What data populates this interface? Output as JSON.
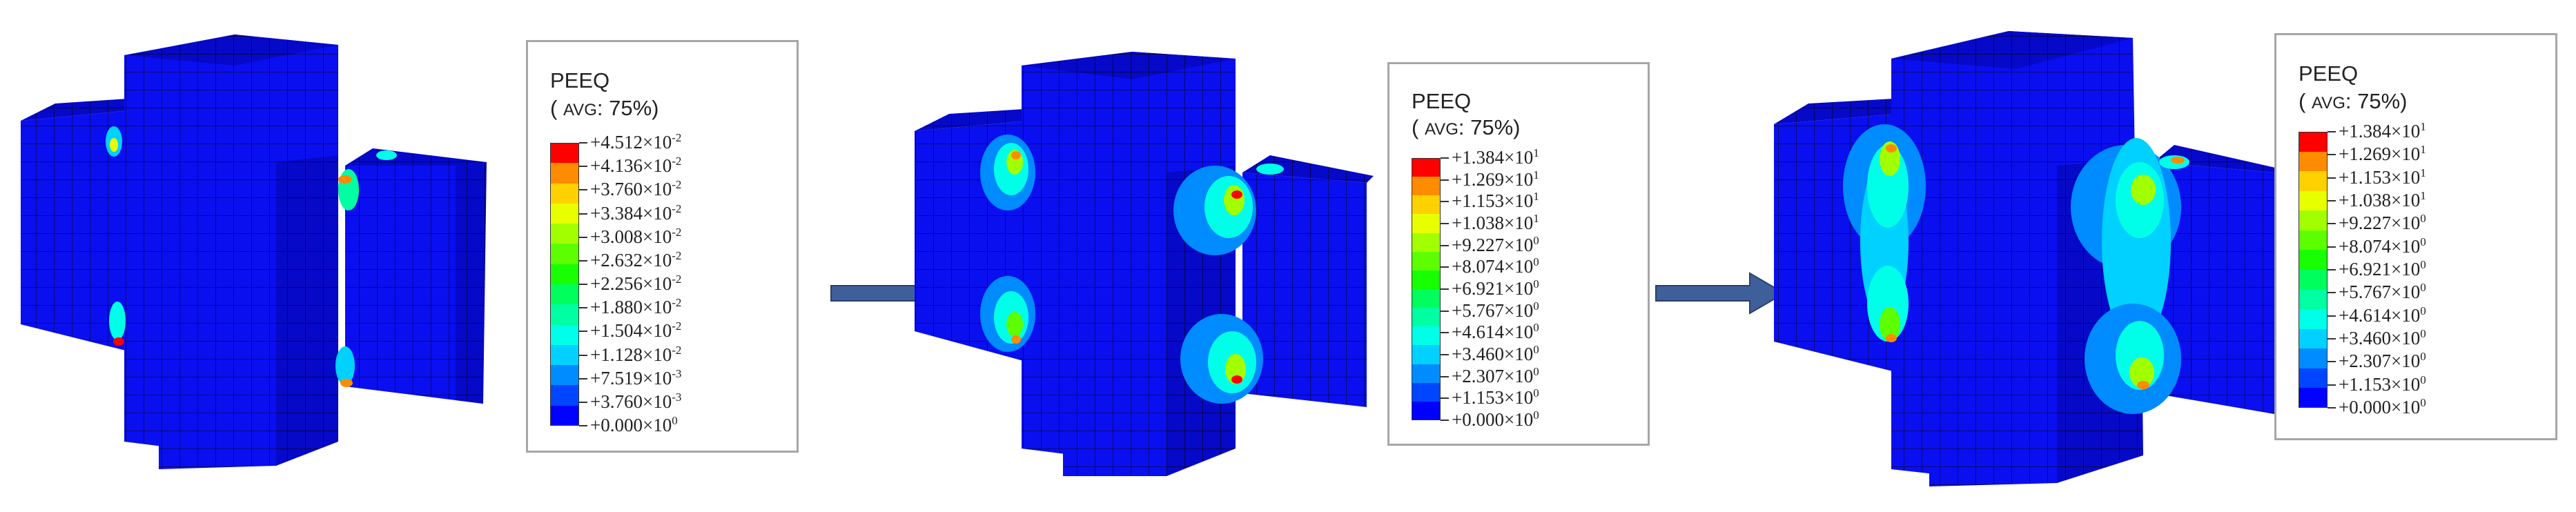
{
  "legend_colors": [
    "#0000ff",
    "#0046ff",
    "#008bff",
    "#00d1ff",
    "#00ffe8",
    "#00ffa2",
    "#00ff5d",
    "#17ff00",
    "#5dff00",
    "#a2ff00",
    "#e8ff00",
    "#ffd100",
    "#ff8b00",
    "#ff0000"
  ],
  "panels": [
    {
      "legend": {
        "title": "PEEQ",
        "avg_open": "(",
        "avg_word": "AVG",
        "avg_rest": ": 75%)",
        "ticks": [
          {
            "m": "+4.512×10",
            "e": "-2"
          },
          {
            "m": "+4.136×10",
            "e": "-2"
          },
          {
            "m": "+3.760×10",
            "e": "-2"
          },
          {
            "m": "+3.384×10",
            "e": "-2"
          },
          {
            "m": "+3.008×10",
            "e": "-2"
          },
          {
            "m": "+2.632×10",
            "e": "-2"
          },
          {
            "m": "+2.256×10",
            "e": "-2"
          },
          {
            "m": "+1.880×10",
            "e": "-2"
          },
          {
            "m": "+1.504×10",
            "e": "-2"
          },
          {
            "m": "+1.128×10",
            "e": "-2"
          },
          {
            "m": "+7.519×10",
            "e": "-3"
          },
          {
            "m": "+3.760×10",
            "e": "-3"
          },
          {
            "m": "+0.000×10",
            "e": "0"
          }
        ]
      },
      "stage": 1
    },
    {
      "legend": {
        "title": "PEEQ",
        "avg_open": "(",
        "avg_word": "AVG",
        "avg_rest": ": 75%)",
        "ticks": [
          {
            "m": "+1.384×10",
            "e": "1"
          },
          {
            "m": "+1.269×10",
            "e": "1"
          },
          {
            "m": "+1.153×10",
            "e": "1"
          },
          {
            "m": "+1.038×10",
            "e": "1"
          },
          {
            "m": "+9.227×10",
            "e": "0"
          },
          {
            "m": "+8.074×10",
            "e": "0"
          },
          {
            "m": "+6.921×10",
            "e": "0"
          },
          {
            "m": "+5.767×10",
            "e": "0"
          },
          {
            "m": "+4.614×10",
            "e": "0"
          },
          {
            "m": "+3.460×10",
            "e": "0"
          },
          {
            "m": "+2.307×10",
            "e": "0"
          },
          {
            "m": "+1.153×10",
            "e": "0"
          },
          {
            "m": "+0.000×10",
            "e": "0"
          }
        ]
      },
      "stage": 2
    },
    {
      "legend": {
        "title": "PEEQ",
        "avg_open": "(",
        "avg_word": "AVG",
        "avg_rest": ": 75%)",
        "ticks": [
          {
            "m": "+1.384×10",
            "e": "1"
          },
          {
            "m": "+1.269×10",
            "e": "1"
          },
          {
            "m": "+1.153×10",
            "e": "1"
          },
          {
            "m": "+1.038×10",
            "e": "1"
          },
          {
            "m": "+9.227×10",
            "e": "0"
          },
          {
            "m": "+8.074×10",
            "e": "0"
          },
          {
            "m": "+6.921×10",
            "e": "0"
          },
          {
            "m": "+5.767×10",
            "e": "0"
          },
          {
            "m": "+4.614×10",
            "e": "0"
          },
          {
            "m": "+3.460×10",
            "e": "0"
          },
          {
            "m": "+2.307×10",
            "e": "0"
          },
          {
            "m": "+1.153×10",
            "e": "0"
          },
          {
            "m": "+0.000×10",
            "e": "0"
          }
        ]
      },
      "stage": 3
    }
  ],
  "arrow_color": "#3f5f9a"
}
